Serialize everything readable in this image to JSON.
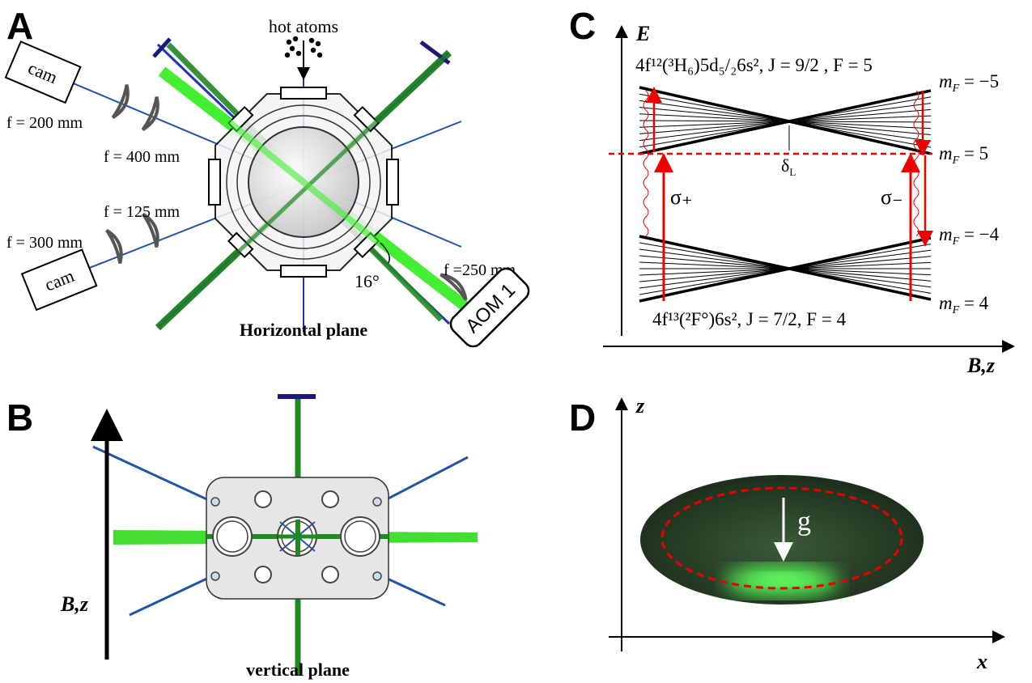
{
  "panel_a": {
    "label": "A",
    "source": "hot atoms",
    "cameras": [
      "cam",
      "cam"
    ],
    "lenses": [
      "f = 200 mm",
      "f = 400 mm",
      "f = 125 mm",
      "f = 300 mm",
      "f =250 mm"
    ],
    "angle": "16°",
    "aom": "AOM 1",
    "caption": "Horizontal plane"
  },
  "panel_b": {
    "label": "B",
    "field_axis": "B,z",
    "caption": "vertical plane"
  },
  "panel_c": {
    "label": "C",
    "y_axis": "E",
    "x_axis": "B,z",
    "upper_state": "4f¹²(³H₆)5d₅/₂6s², J = 9/2 , F = 5",
    "lower_state": "4f¹³(²F°)6s², J = 7/2, F = 4",
    "levels": [
      {
        "symbol": "m",
        "sub": "F",
        "value": " = −5"
      },
      {
        "symbol": "m",
        "sub": "F",
        "value": " = 5"
      },
      {
        "symbol": "m",
        "sub": "F",
        "value": " = −4"
      },
      {
        "symbol": "m",
        "sub": "F",
        "value": " = 4"
      }
    ],
    "detuning": {
      "symbol": "δ",
      "sub": "L"
    },
    "transitions": [
      "σ₊",
      "σ₋"
    ]
  },
  "panel_d": {
    "label": "D",
    "y_axis": "z",
    "x_axis": "x",
    "gravity": "g"
  }
}
